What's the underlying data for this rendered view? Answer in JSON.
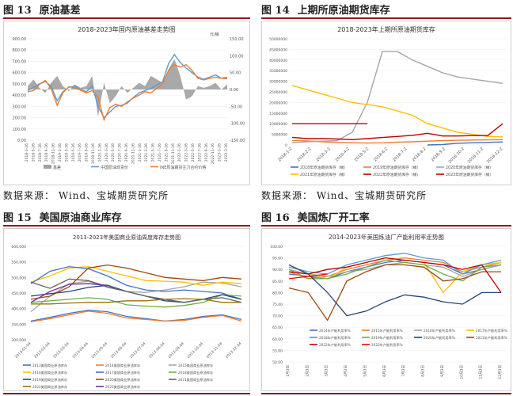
{
  "figures": [
    {
      "number": "图 13",
      "title": "原油基差",
      "chart_title": "2018-2023年国内原油基差走势图",
      "source": "数据来源：  Wind、宝城期货研究所",
      "chart_data": {
        "type": "line",
        "title": "2018-2023年国内原油基差走势图",
        "left_unit": "元/桶",
        "left_axis": {
          "range": [
            0,
            900
          ],
          "ticks": [
            "900.00",
            "800.00",
            "700.00",
            "600.00",
            "500.00",
            "400.00",
            "300.00",
            "200.00",
            "100.00",
            "0.00"
          ]
        },
        "right_axis": {
          "range": [
            -150,
            150
          ],
          "ticks": [
            "150.00",
            "100.00",
            "50.00",
            "0.00",
            "-50.00",
            "-100.00",
            "-150.00"
          ]
        },
        "x_ticks": [
          "2018-3-26",
          "2018-5-26",
          "2018-7-26",
          "2018-9-26",
          "2018-11-26",
          "2019-1-26",
          "2019-3-26",
          "2019-5-26",
          "2019-7-26",
          "2019-9-26",
          "2019-11-26",
          "2020-1-26",
          "2020-3-26",
          "2020-5-26",
          "2020-7-26",
          "2020-9-26",
          "2020-11-26",
          "2021-1-26",
          "2021-3-26",
          "2021-5-26",
          "2021-7-26",
          "2021-9-26",
          "2021-11-26",
          "2022-1-26",
          "2022-3-26",
          "2022-5-26",
          "2022-7-26",
          "2022-9-26",
          "2022-11-26",
          "2023-1-26",
          "2023-3-26"
        ],
        "series": [
          {
            "name": "基差",
            "type": "area",
            "axis": "right",
            "color": "#a0a0a0",
            "values": [
              10,
              30,
              5,
              -10,
              20,
              40,
              10,
              -5,
              15,
              5,
              10,
              40,
              -80,
              20,
              -40,
              -20,
              10,
              -10,
              5,
              20,
              10,
              40,
              30,
              20,
              60,
              90,
              40,
              -30,
              -20,
              10,
              5,
              10,
              20,
              0,
              15
            ]
          },
          {
            "name": "中国原油现货价",
            "axis": "left",
            "color": "#5b9bd5",
            "values": [
              440,
              470,
              500,
              520,
              480,
              350,
              430,
              470,
              480,
              450,
              430,
              480,
              300,
              200,
              250,
              300,
              310,
              330,
              380,
              420,
              440,
              460,
              490,
              520,
              680,
              760,
              690,
              640,
              600,
              560,
              540,
              560,
              580,
              550,
              560
            ]
          },
          {
            "name": "INE原油期货主力合约价格",
            "axis": "left",
            "color": "#ed7d31",
            "values": [
              430,
              440,
              495,
              530,
              460,
              310,
              420,
              475,
              465,
              445,
              420,
              440,
              380,
              180,
              290,
              320,
              300,
              340,
              375,
              400,
              430,
              420,
              460,
              500,
              620,
              670,
              650,
              670,
              620,
              550,
              535,
              550,
              560,
              550,
              545
            ]
          }
        ]
      }
    },
    {
      "number": "图 14",
      "title": "上期所原油期货库存",
      "chart_title": "2018-2023年上期所原油期货库存",
      "source": "数据来源：  Wind、宝城期货研究所",
      "chart_data": {
        "type": "line",
        "title": "2018-2023年上期所原油期货库存",
        "y_axis": {
          "range": [
            0,
            50000000
          ],
          "ticks": [
            "50000000",
            "45000000",
            "40000000",
            "35000000",
            "30000000",
            "25000000",
            "20000000",
            "15000000",
            "10000000",
            "5000000",
            "0"
          ]
        },
        "x_ticks": [
          "2018-1-2",
          "2018-2-2",
          "2018-3-2",
          "2018-4-2",
          "2018-5-2",
          "2018-6-2",
          "2018-7-2",
          "2018-8-2",
          "2018-9-2",
          "2018-10-2",
          "2018-11-2",
          "2018-12-2"
        ],
        "series": [
          {
            "name": "2018年原油期货库存（桶）",
            "color": "#4472c4",
            "values": [
              null,
              null,
              null,
              null,
              null,
              null,
              null,
              null,
              null,
              0,
              200000,
              800000,
              1000000,
              1200000,
              1400000
            ]
          },
          {
            "name": "2019年原油期货库存（桶）",
            "color": "#ed7d31",
            "values": [
              2000000,
              1900000,
              1500000,
              1200000,
              1000000,
              900000,
              1000000,
              1300000,
              1500000,
              1800000,
              2000000,
              2200000,
              2300000,
              2400000,
              2500000
            ]
          },
          {
            "name": "2020年原油期货库存（桶）",
            "color": "#a5a5a5",
            "values": [
              1000000,
              1500000,
              1800000,
              2000000,
              6000000,
              20000000,
              44000000,
              44000000,
              40000000,
              37000000,
              34000000,
              32000000,
              31000000,
              30000000,
              29000000
            ]
          },
          {
            "name": "2021年原油期货库存（桶）",
            "color": "#ffc000",
            "values": [
              28000000,
              26000000,
              24000000,
              22000000,
              20000000,
              19000000,
              18000000,
              16000000,
              14000000,
              10000000,
              8000000,
              6000000,
              5000000,
              4000000,
              3800000
            ]
          },
          {
            "name": "2022年原油期货库存（桶）",
            "color": "#c00000",
            "values": [
              3600000,
              3000000,
              3000000,
              2800000,
              2500000,
              3000000,
              3500000,
              4000000,
              4500000,
              5500000,
              4200000,
              4200000,
              4400000,
              4400000,
              10000000
            ]
          },
          {
            "name": "2023年原油期货库存（桶）",
            "color": "#c00000",
            "values": [
              10000000,
              10000000,
              10000000,
              10000000,
              10000000,
              10000000,
              null,
              null,
              null,
              null,
              null,
              null,
              null,
              null,
              null
            ]
          }
        ]
      }
    },
    {
      "number": "图 15",
      "title": "美国原油商业库存",
      "chart_title": "2013-2023年美国商业原油周度库存走势图",
      "source": "",
      "chart_data": {
        "type": "line",
        "title": "2013-2023年美国商业原油周度库存走势图",
        "y_axis": {
          "range": [
            300000,
            600000
          ],
          "ticks": [
            "600,000",
            "550,000",
            "500,000",
            "450,000",
            "400,000",
            "350,000",
            "300,000"
          ]
        },
        "x_ticks": [
          "2013-01-04",
          "2013-02-04",
          "2013-03-04",
          "2013-04-04",
          "2013-05-04",
          "2013-06-04",
          "2013-07-04",
          "2013-08-04",
          "2013-09-04",
          "2013-10-04",
          "2013-11-04",
          "2013-12-04"
        ],
        "series": [
          {
            "name": "2013美国商业原油库存",
            "color": "#4472c4",
            "values": [
              360000,
              372000,
              385000,
              395000,
              390000,
              375000,
              368000,
              360000,
              365000,
              375000,
              380000,
              365000
            ]
          },
          {
            "name": "2014美国商业原油库存",
            "color": "#ed7d31",
            "values": [
              358000,
              368000,
              380000,
              392000,
              385000,
              370000,
              365000,
              360000,
              362000,
              372000,
              378000,
              360000
            ]
          },
          {
            "name": "2015美国商业原油库存",
            "color": "#a5a5a5",
            "values": [
              390000,
              440000,
              480000,
              488000,
              468000,
              455000,
              452000,
              460000,
              470000,
              485000,
              482000,
              470000
            ]
          },
          {
            "name": "2016美国商业原油库存",
            "color": "#ffc000",
            "values": [
              485000,
              505000,
              530000,
              535000,
              520000,
              505000,
              490000,
              488000,
              485000,
              475000,
              485000,
              480000
            ]
          },
          {
            "name": "2017美国商业原油库存",
            "color": "#4472c4",
            "values": [
              480000,
              520000,
              535000,
              528000,
              505000,
              475000,
              460000,
              455000,
              460000,
              455000,
              450000,
              430000
            ]
          },
          {
            "name": "2018美国商业原油库存",
            "color": "#70ad47",
            "values": [
              420000,
              425000,
              430000,
              435000,
              430000,
              412000,
              408000,
              405000,
              410000,
              420000,
              445000,
              440000
            ]
          },
          {
            "name": "2019美国商业原油库存",
            "color": "#264478",
            "values": [
              440000,
              448000,
              455000,
              468000,
              475000,
              455000,
              440000,
              425000,
              420000,
              430000,
              445000,
              430000
            ]
          },
          {
            "name": "2020美国商业原油库存",
            "color": "#9e480e",
            "values": [
              430000,
              440000,
              470000,
              530000,
              540000,
              530000,
              515000,
              500000,
              495000,
              490000,
              500000,
              495000
            ]
          },
          {
            "name": "2021美国商业原油库存",
            "color": "#636363",
            "values": [
              485000,
              465000,
              495000,
              490000,
              470000,
              455000,
              440000,
              430000,
              420000,
              430000,
              435000,
              420000
            ]
          },
          {
            "name": "2022美国商业原油库存",
            "color": "#997300",
            "values": [
              415000,
              415000,
              418000,
              420000,
              420000,
              425000,
              425000,
              430000,
              432000,
              430000,
              420000,
              420000
            ]
          },
          {
            "name": "2023美国商业原油库存",
            "color": "#7030a0",
            "values": [
              420000,
              455000,
              478000,
              480000,
              475000,
              null,
              null,
              null,
              null,
              null,
              null,
              null
            ]
          }
        ]
      }
    },
    {
      "number": "图 16",
      "title": "美国炼厂开工率",
      "chart_title": "2014-2023年美国炼油厂产能利用率走势图",
      "source": "",
      "chart_data": {
        "type": "line",
        "title": "2014-2023年美国炼油厂产能利用率走势图",
        "y_axis": {
          "range": [
            50,
            100
          ],
          "ticks": [
            "100.00",
            "95.00",
            "90.00",
            "85.00",
            "80.00",
            "75.00",
            "70.00",
            "65.00",
            "60.00",
            "55.00",
            "50.00"
          ]
        },
        "x_ticks": [
          "1月3日",
          "2月3日",
          "3月3日",
          "4月3日",
          "5月3日",
          "6月3日",
          "7月3日",
          "8月3日",
          "9月3日",
          "10月3日",
          "11月3日",
          "12月3日"
        ],
        "series": [
          {
            "name": "2014年产能利用率%",
            "color": "#4472c4",
            "values": [
              88,
              87,
              86,
              89,
              91,
              93,
              94,
              93,
              92,
              88,
              90,
              92
            ]
          },
          {
            "name": "2015年产能利用率%",
            "color": "#ed7d31",
            "values": [
              89,
              86,
              87,
              90,
              92,
              94,
              95,
              94,
              93,
              89,
              91,
              93
            ]
          },
          {
            "name": "2016年产能利用率%",
            "color": "#a5a5a5",
            "values": [
              90,
              88,
              87,
              89,
              90,
              92,
              93,
              92,
              91,
              87,
              90,
              92
            ]
          },
          {
            "name": "2017年产能利用率%",
            "color": "#ffc000",
            "values": [
              92,
              88,
              86,
              91,
              93,
              95,
              94,
              93,
              80,
              89,
              92,
              93
            ]
          },
          {
            "name": "2018年产能利用率%",
            "color": "#5b9bd5",
            "values": [
              91,
              89,
              88,
              92,
              94,
              96,
              97,
              95,
              94,
              88,
              92,
              94
            ]
          },
          {
            "name": "2019年产能利用率%",
            "color": "#70ad47",
            "values": [
              90,
              86,
              86,
              88,
              91,
              94,
              93,
              92,
              88,
              85,
              91,
              92
            ]
          },
          {
            "name": "2020年产能利用率%",
            "color": "#264478",
            "values": [
              92,
              88,
              80,
              70,
              72,
              76,
              79,
              78,
              76,
              75,
              80,
              80
            ]
          },
          {
            "name": "2021年产能利用率%",
            "color": "#9e480e",
            "values": [
              82,
              80,
              68,
              85,
              89,
              92,
              92,
              91,
              85,
              86,
              89,
              89
            ]
          },
          {
            "name": "2022年产能利用率%",
            "color": "#c00000",
            "values": [
              89,
              88,
              90,
              91,
              93,
              95,
              94,
              93,
              92,
              90,
              92,
              80
            ]
          },
          {
            "name": "2023年产能利用率%",
            "color": "#ff0000",
            "values": [
              86,
              87,
              88,
              null,
              null,
              null,
              null,
              null,
              null,
              null,
              null,
              null
            ]
          }
        ]
      }
    }
  ]
}
